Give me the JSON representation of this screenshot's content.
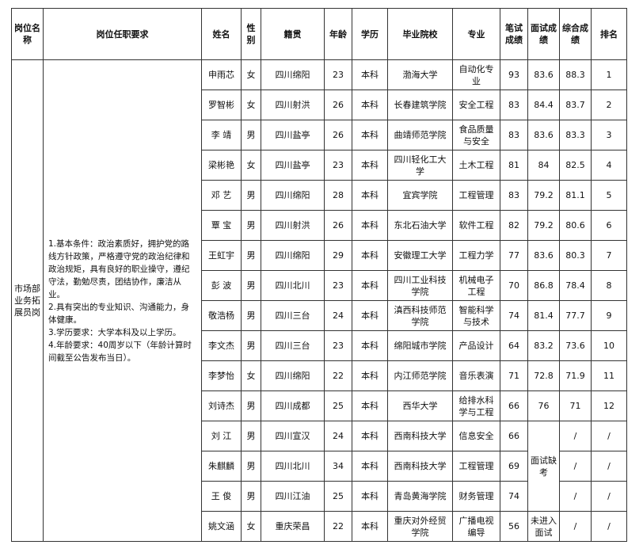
{
  "header": {
    "columns": [
      "岗位名称",
      "岗位任职要求",
      "姓名",
      "性别",
      "籍贯",
      "年龄",
      "学历",
      "毕业院校",
      "专业",
      "笔试成绩",
      "面试成绩",
      "综合成绩",
      "排名"
    ]
  },
  "position": {
    "name": "市场部业务拓展员岗",
    "requirements": [
      "1.基本条件：政治素质好，拥护党的路线方针政策，严格遵守党的政治纪律和政治规矩，具有良好的职业操守，遵纪守法，勤勉尽责，团结协作，廉洁从业。",
      "2.具有突出的专业知识、沟通能力，身体健康。",
      "3.学历要求：大学本科及以上学历。",
      "4.年龄要求：40周岁以下（年龄计算时间截至公告发布当日）。"
    ]
  },
  "rows": [
    {
      "name": "申雨芯",
      "gender": "女",
      "origin": "四川绵阳",
      "age": 23,
      "education": "本科",
      "school": "渤海大学",
      "major": "自动化专业",
      "written": 93,
      "interview": 83.6,
      "total": 88.3,
      "rank": 1
    },
    {
      "name": "罗智彬",
      "gender": "女",
      "origin": "四川射洪",
      "age": 26,
      "education": "本科",
      "school": "长春建筑学院",
      "major": "安全工程",
      "written": 83,
      "interview": 84.4,
      "total": 83.7,
      "rank": 2
    },
    {
      "name": "李 靖",
      "gender": "男",
      "origin": "四川盐亭",
      "age": 26,
      "education": "本科",
      "school": "曲靖师范学院",
      "major": "食品质量与安全",
      "written": 83,
      "interview": 83.6,
      "total": 83.3,
      "rank": 3
    },
    {
      "name": "梁彬艳",
      "gender": "女",
      "origin": "四川盐亭",
      "age": 23,
      "education": "本科",
      "school": "四川轻化工大学",
      "major": "土木工程",
      "written": 81,
      "interview": 84,
      "total": 82.5,
      "rank": 4
    },
    {
      "name": "邓 艺",
      "gender": "男",
      "origin": "四川绵阳",
      "age": 28,
      "education": "本科",
      "school": "宜宾学院",
      "major": "工程管理",
      "written": 83,
      "interview": 79.2,
      "total": 81.1,
      "rank": 5
    },
    {
      "name": "覃 宝",
      "gender": "男",
      "origin": "四川射洪",
      "age": 26,
      "education": "本科",
      "school": "东北石油大学",
      "major": "软件工程",
      "written": 82,
      "interview": 79.2,
      "total": 80.6,
      "rank": 6
    },
    {
      "name": "王虹宇",
      "gender": "男",
      "origin": "四川绵阳",
      "age": 29,
      "education": "本科",
      "school": "安徽理工大学",
      "major": "工程力学",
      "written": 77,
      "interview": 83.6,
      "total": 80.3,
      "rank": 7
    },
    {
      "name": "彭 波",
      "gender": "男",
      "origin": "四川北川",
      "age": 23,
      "education": "本科",
      "school": "四川工业科技学院",
      "major": "机械电子工程",
      "written": 70,
      "interview": 86.8,
      "total": 78.4,
      "rank": 8
    },
    {
      "name": "敬浩杨",
      "gender": "男",
      "origin": "四川三台",
      "age": 24,
      "education": "本科",
      "school": "滇西科技师范学院",
      "major": "智能科学与技术",
      "written": 74,
      "interview": 81.4,
      "total": 77.7,
      "rank": 9
    },
    {
      "name": "李文杰",
      "gender": "男",
      "origin": "四川三台",
      "age": 23,
      "education": "本科",
      "school": "绵阳城市学院",
      "major": "产品设计",
      "written": 64,
      "interview": 83.2,
      "total": 73.6,
      "rank": 10
    },
    {
      "name": "李梦怡",
      "gender": "女",
      "origin": "四川绵阳",
      "age": 22,
      "education": "本科",
      "school": "内江师范学院",
      "major": "音乐表演",
      "written": 71,
      "interview": 72.8,
      "total": 71.9,
      "rank": 11
    },
    {
      "name": "刘诗杰",
      "gender": "男",
      "origin": "四川成都",
      "age": 25,
      "education": "本科",
      "school": "西华大学",
      "major": "给排水科学与工程",
      "written": 66,
      "interview": 76,
      "total": 71,
      "rank": 12
    },
    {
      "name": "刘 江",
      "gender": "男",
      "origin": "四川宣汉",
      "age": 24,
      "education": "本科",
      "school": "西南科技大学",
      "major": "信息安全",
      "written": 66,
      "interview": "面试缺考",
      "total": "/",
      "rank": "/"
    },
    {
      "name": "朱麒麟",
      "gender": "男",
      "origin": "四川北川",
      "age": 34,
      "education": "本科",
      "school": "西南科技大学",
      "major": "工程管理",
      "written": 69,
      "total": "/",
      "rank": "/"
    },
    {
      "name": "王 俊",
      "gender": "男",
      "origin": "四川江油",
      "age": 25,
      "education": "本科",
      "school": "青岛黄海学院",
      "major": "财务管理",
      "written": 74,
      "total": "/",
      "rank": "/"
    },
    {
      "name": "姚文涵",
      "gender": "女",
      "origin": "重庆荣昌",
      "age": 22,
      "education": "本科",
      "school": "重庆对外经贸学院",
      "major": "广播电视编导",
      "written": 56,
      "interview": "未进入面试",
      "total": "/",
      "rank": "/"
    }
  ]
}
